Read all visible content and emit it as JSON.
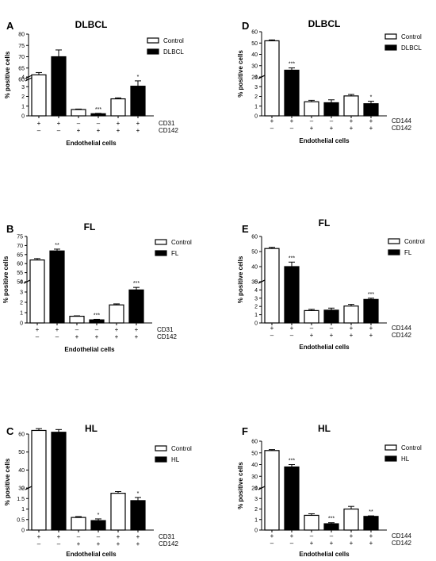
{
  "chart_data": [
    {
      "panel": "A",
      "title": "DLBCL",
      "type": "bar",
      "ylabel": "% positive cells",
      "xlabel": "Endothelial cells",
      "legend": [
        "Control",
        "DLBCL"
      ],
      "lower_range": [
        0,
        4
      ],
      "lower_ticks": [
        0,
        1,
        2,
        3,
        4
      ],
      "upper_range": [
        60,
        80
      ],
      "upper_ticks": [
        60,
        65,
        70,
        75,
        80
      ],
      "values": [
        62,
        70,
        0.65,
        0.22,
        1.75,
        3.05
      ],
      "errors": [
        1,
        3,
        0.05,
        0.04,
        0.1,
        0.55
      ],
      "significance": [
        "",
        "",
        "",
        "***",
        "",
        "*"
      ],
      "row_labels": [
        "CD31",
        "CD142"
      ],
      "row1": [
        "+",
        "+",
        "–",
        "–",
        "+",
        "+"
      ],
      "row2": [
        "–",
        "–",
        "+",
        "+",
        "+",
        "+"
      ]
    },
    {
      "panel": "D",
      "title": "DLBCL",
      "type": "bar",
      "ylabel": "% positive cells",
      "xlabel": "Endothelial cells",
      "legend": [
        "Control",
        "DLBCL"
      ],
      "lower_range": [
        0,
        4
      ],
      "lower_ticks": [
        0,
        1,
        2,
        3,
        4
      ],
      "upper_range": [
        20,
        60
      ],
      "upper_ticks": [
        20,
        30,
        40,
        50,
        60
      ],
      "values": [
        52,
        26,
        1.45,
        1.35,
        2.05,
        1.25
      ],
      "errors": [
        0.8,
        2,
        0.15,
        0.3,
        0.15,
        0.25
      ],
      "significance": [
        "",
        "***",
        "",
        "",
        "",
        "*"
      ],
      "row_labels": [
        "CD144",
        "CD142"
      ],
      "row1": [
        "+",
        "+",
        "–",
        "–",
        "+",
        "+"
      ],
      "row2": [
        "–",
        "–",
        "+",
        "+",
        "+",
        "+"
      ]
    },
    {
      "panel": "B",
      "title": "FL",
      "type": "bar",
      "ylabel": "% positive cells",
      "xlabel": "Endothelial cells",
      "legend": [
        "Control",
        "FL"
      ],
      "lower_range": [
        0,
        4
      ],
      "lower_ticks": [
        0,
        1,
        2,
        3,
        4
      ],
      "upper_range": [
        50,
        75
      ],
      "upper_ticks": [
        50,
        55,
        60,
        65,
        70,
        75
      ],
      "values": [
        62,
        67,
        0.65,
        0.3,
        1.75,
        3.2
      ],
      "errors": [
        0.8,
        1,
        0.04,
        0.05,
        0.1,
        0.25
      ],
      "significance": [
        "",
        "**",
        "",
        "***",
        "",
        "***"
      ],
      "row_labels": [
        "CD31",
        "CD142"
      ],
      "row1": [
        "+",
        "+",
        "–",
        "–",
        "+",
        "+"
      ],
      "row2": [
        "–",
        "–",
        "+",
        "+",
        "+",
        "+"
      ]
    },
    {
      "panel": "E",
      "title": "FL",
      "type": "bar",
      "ylabel": "% positive cells",
      "xlabel": "Endothelial cells",
      "legend": [
        "Control",
        "FL"
      ],
      "lower_range": [
        0,
        5
      ],
      "lower_ticks": [
        0,
        1,
        2,
        3,
        4,
        5
      ],
      "upper_range": [
        30,
        60
      ],
      "upper_ticks": [
        30,
        40,
        50,
        60
      ],
      "values": [
        52,
        40,
        1.5,
        1.55,
        2.05,
        2.85
      ],
      "errors": [
        0.8,
        3,
        0.15,
        0.25,
        0.2,
        0.15
      ],
      "significance": [
        "",
        "***",
        "",
        "",
        "",
        "***"
      ],
      "row_labels": [
        "CD144",
        "CD142"
      ],
      "row1": [
        "+",
        "+",
        "–",
        "–",
        "+",
        "+"
      ],
      "row2": [
        "–",
        "–",
        "+",
        "+",
        "+",
        "+"
      ]
    },
    {
      "panel": "C",
      "title": "HL",
      "type": "bar",
      "ylabel": "% positive cells",
      "xlabel": "Endothelial cells",
      "legend": [
        "Control",
        "HL"
      ],
      "lower_range": [
        0,
        2
      ],
      "lower_ticks": [
        0,
        0.5,
        1,
        1.5,
        2
      ],
      "upper_range": [
        30,
        60
      ],
      "upper_ticks": [
        30,
        40,
        50,
        60
      ],
      "values": [
        62,
        61,
        0.6,
        0.45,
        1.75,
        1.4
      ],
      "errors": [
        1,
        1.5,
        0.04,
        0.08,
        0.08,
        0.15
      ],
      "significance": [
        "",
        "",
        "",
        "*",
        "",
        "*"
      ],
      "row_labels": [
        "CD31",
        "CD142"
      ],
      "row1": [
        "+",
        "+",
        "–",
        "–",
        "+",
        "+"
      ],
      "row2": [
        "–",
        "–",
        "+",
        "+",
        "+",
        "+"
      ]
    },
    {
      "panel": "F",
      "title": "HL",
      "type": "bar",
      "ylabel": "% positive cells",
      "xlabel": "Endothelial cells",
      "legend": [
        "Control",
        "HL"
      ],
      "lower_range": [
        0,
        4
      ],
      "lower_ticks": [
        0,
        1,
        2,
        3,
        4
      ],
      "upper_range": [
        20,
        60
      ],
      "upper_ticks": [
        20,
        30,
        40,
        50,
        60
      ],
      "values": [
        52,
        38,
        1.4,
        0.6,
        2.0,
        1.3
      ],
      "errors": [
        0.8,
        2,
        0.15,
        0.1,
        0.25,
        0.05
      ],
      "significance": [
        "",
        "***",
        "",
        "***",
        "",
        "**"
      ],
      "row_labels": [
        "CD144",
        "CD142"
      ],
      "row1": [
        "+",
        "+",
        "–",
        "–",
        "+",
        "+"
      ],
      "row2": [
        "–",
        "–",
        "+",
        "+",
        "+",
        "+"
      ]
    }
  ]
}
